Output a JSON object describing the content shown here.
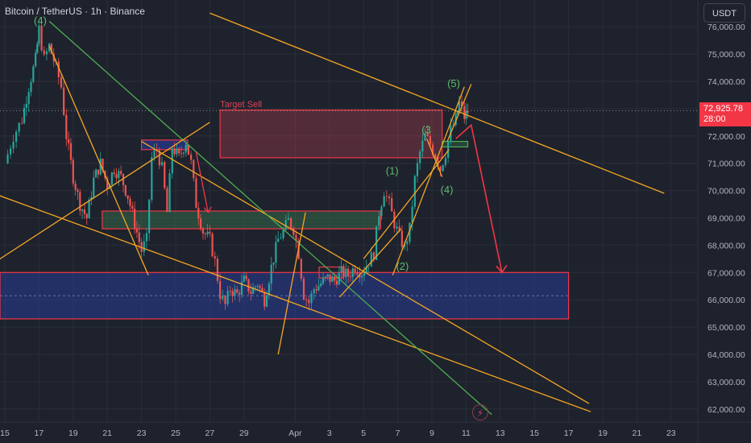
{
  "header": {
    "title": "Bitcoin / TetherUS · 1h · Binance"
  },
  "currency_button": {
    "label": "USDT"
  },
  "last_price": {
    "value": "72,925.78",
    "countdown": "28:00"
  },
  "colors": {
    "background": "#1e222d",
    "grid": "#2a2e39",
    "up": "#26a69a",
    "down": "#ef5350",
    "orange": "#f5a623",
    "green": "#4caf50",
    "red": "#f23645",
    "blue_zone": "#2a3f8f"
  },
  "chart_data": {
    "type": "candlestick",
    "ylim": [
      61800,
      76400
    ],
    "y_ticks": [
      {
        "value": 62000,
        "label": "62,000.00"
      },
      {
        "value": 63000,
        "label": "63,000.00"
      },
      {
        "value": 64000,
        "label": "64,000.00"
      },
      {
        "value": 65000,
        "label": "65,000.00"
      },
      {
        "value": 66000,
        "label": "66,000.00"
      },
      {
        "value": 67000,
        "label": "67,000.00"
      },
      {
        "value": 68000,
        "label": "68,000.00"
      },
      {
        "value": 69000,
        "label": "69,000.00"
      },
      {
        "value": 70000,
        "label": "70,000.00"
      },
      {
        "value": 71000,
        "label": "71,000.00"
      },
      {
        "value": 72000,
        "label": "72,000.00"
      },
      {
        "value": 73000,
        "label": "73,000.00"
      },
      {
        "value": 74000,
        "label": "74,000.00"
      },
      {
        "value": 75000,
        "label": "75,000.00"
      },
      {
        "value": 76000,
        "label": "76,000.00"
      }
    ],
    "x_ticks": [
      {
        "day": 15,
        "label": "15"
      },
      {
        "day": 17,
        "label": "17"
      },
      {
        "day": 19,
        "label": "19"
      },
      {
        "day": 21,
        "label": "21"
      },
      {
        "day": 23,
        "label": "23"
      },
      {
        "day": 25,
        "label": "25"
      },
      {
        "day": 27,
        "label": "27"
      },
      {
        "day": 29,
        "label": "29"
      },
      {
        "day": 32,
        "label": "Apr"
      },
      {
        "day": 34,
        "label": "3"
      },
      {
        "day": 36,
        "label": "5"
      },
      {
        "day": 38,
        "label": "7"
      },
      {
        "day": 40,
        "label": "9"
      },
      {
        "day": 42,
        "label": "11"
      },
      {
        "day": 44,
        "label": "13"
      },
      {
        "day": 46,
        "label": "15"
      },
      {
        "day": 48,
        "label": "17"
      },
      {
        "day": 50,
        "label": "19"
      },
      {
        "day": 52,
        "label": "21"
      },
      {
        "day": 54,
        "label": "23"
      }
    ],
    "price_path": [
      [
        15.0,
        71000
      ],
      [
        15.5,
        72000
      ],
      [
        16.0,
        72600
      ],
      [
        16.4,
        73800
      ],
      [
        16.8,
        74800
      ],
      [
        17.0,
        75900
      ],
      [
        17.3,
        74800
      ],
      [
        17.6,
        75300
      ],
      [
        18.0,
        74500
      ],
      [
        18.3,
        73800
      ],
      [
        18.6,
        72000
      ],
      [
        19.0,
        70500
      ],
      [
        19.4,
        69500
      ],
      [
        19.8,
        69000
      ],
      [
        20.2,
        70400
      ],
      [
        20.6,
        71000
      ],
      [
        21.0,
        70200
      ],
      [
        21.4,
        70800
      ],
      [
        21.8,
        70500
      ],
      [
        22.2,
        69800
      ],
      [
        22.6,
        68800
      ],
      [
        23.0,
        67800
      ],
      [
        23.3,
        68200
      ],
      [
        23.6,
        71200
      ],
      [
        23.9,
        71500
      ],
      [
        24.2,
        70800
      ],
      [
        24.5,
        69200
      ],
      [
        24.8,
        71600
      ],
      [
        25.2,
        71200
      ],
      [
        25.6,
        71800
      ],
      [
        25.9,
        71000
      ],
      [
        26.2,
        69500
      ],
      [
        26.6,
        68500
      ],
      [
        27.0,
        68200
      ],
      [
        27.3,
        67400
      ],
      [
        27.6,
        66200
      ],
      [
        27.9,
        65800
      ],
      [
        28.2,
        66400
      ],
      [
        28.6,
        66200
      ],
      [
        29.0,
        66700
      ],
      [
        29.4,
        66300
      ],
      [
        29.8,
        66600
      ],
      [
        30.2,
        66000
      ],
      [
        30.6,
        67200
      ],
      [
        31.0,
        68200
      ],
      [
        31.3,
        68500
      ],
      [
        31.6,
        68900
      ],
      [
        31.9,
        68600
      ],
      [
        32.2,
        67700
      ],
      [
        32.5,
        66200
      ],
      [
        32.8,
        65900
      ],
      [
        33.1,
        66400
      ],
      [
        33.5,
        66600
      ],
      [
        33.9,
        66800
      ],
      [
        34.3,
        66700
      ],
      [
        34.7,
        67000
      ],
      [
        35.1,
        66900
      ],
      [
        35.5,
        67200
      ],
      [
        35.9,
        67000
      ],
      [
        36.3,
        67400
      ],
      [
        36.6,
        67700
      ],
      [
        36.9,
        69200
      ],
      [
        37.2,
        70000
      ],
      [
        37.5,
        69500
      ],
      [
        37.8,
        68800
      ],
      [
        38.1,
        68300
      ],
      [
        38.4,
        67900
      ],
      [
        38.7,
        68600
      ],
      [
        39.0,
        70400
      ],
      [
        39.3,
        71400
      ],
      [
        39.6,
        72000
      ],
      [
        39.9,
        71700
      ],
      [
        40.2,
        71300
      ],
      [
        40.5,
        70800
      ],
      [
        40.8,
        71400
      ],
      [
        41.1,
        72200
      ],
      [
        41.4,
        72600
      ],
      [
        41.6,
        73200
      ],
      [
        41.9,
        72700
      ],
      [
        42.1,
        72900
      ]
    ],
    "zones": [
      {
        "name": "target-sell-zone",
        "x": [
          27.6,
          40.6
        ],
        "y": [
          71200,
          72950
        ]
      },
      {
        "name": "blue-support-zone",
        "x": [
          13.0,
          48.0
        ],
        "y": [
          65300,
          67000
        ]
      },
      {
        "name": "green-zone",
        "x": [
          20.7,
          37.0
        ],
        "y": [
          68600,
          69250
        ]
      },
      {
        "name": "blue-box-small",
        "x": [
          23.0,
          25.7
        ],
        "y": [
          71500,
          71850
        ]
      },
      {
        "name": "consolidation-box",
        "x": [
          33.4,
          34.8
        ],
        "y": [
          66800,
          67200
        ]
      },
      {
        "name": "wave4-box",
        "x": [
          40.6,
          42.1
        ],
        "y": [
          71600,
          71800
        ]
      }
    ],
    "lines": [
      {
        "name": "upper-resistance",
        "color": "orange",
        "points": [
          [
            27.0,
            76500
          ],
          [
            53.6,
            69900
          ]
        ]
      },
      {
        "name": "channel-lower",
        "color": "orange",
        "points": [
          [
            13.0,
            70200
          ],
          [
            49.3,
            61900
          ]
        ]
      },
      {
        "name": "channel-mid",
        "color": "orange",
        "points": [
          [
            23.0,
            71800
          ],
          [
            49.2,
            62200
          ]
        ]
      },
      {
        "name": "green-diagonal",
        "color": "green",
        "points": [
          [
            17.6,
            76200
          ],
          [
            43.5,
            61800
          ]
        ]
      },
      {
        "name": "rising-wedge-1",
        "color": "orange",
        "points": [
          [
            13.0,
            66800
          ],
          [
            27.0,
            72500
          ]
        ]
      },
      {
        "name": "falling-from-top",
        "color": "orange",
        "points": [
          [
            17.6,
            75300
          ],
          [
            23.4,
            66900
          ]
        ]
      },
      {
        "name": "wave2-support",
        "color": "orange",
        "points": [
          [
            36.0,
            67500
          ],
          [
            41.0,
            71500
          ]
        ]
      },
      {
        "name": "wave2-lower",
        "color": "orange",
        "points": [
          [
            37.7,
            66900
          ],
          [
            41.9,
            73800
          ]
        ]
      },
      {
        "name": "wave3-wedge",
        "color": "orange",
        "points": [
          [
            39.7,
            71900
          ],
          [
            40.6,
            70500
          ]
        ]
      },
      {
        "name": "wave5-upper",
        "color": "orange",
        "points": [
          [
            40.9,
            71800
          ],
          [
            42.3,
            73900
          ]
        ]
      },
      {
        "name": "mini-channel",
        "color": "orange",
        "points": [
          [
            31.0,
            64000
          ],
          [
            32.6,
            69200
          ]
        ]
      },
      {
        "name": "wave-rise",
        "color": "orange",
        "points": [
          [
            34.6,
            66100
          ],
          [
            38.2,
            68600
          ]
        ]
      }
    ],
    "projection": [
      [
        41.4,
        71900
      ],
      [
        42.3,
        72400
      ],
      [
        44.1,
        67000
      ]
    ],
    "annotations": [
      {
        "text": "(4)",
        "x": 16.7,
        "y": 76100,
        "color": "green"
      },
      {
        "text": "Target Sell",
        "x": 27.6,
        "y": 73050,
        "color": "red"
      },
      {
        "text": "(1)",
        "x": 37.3,
        "y": 70600,
        "color": "green"
      },
      {
        "text": "(2)",
        "x": 37.9,
        "y": 67100,
        "color": "green"
      },
      {
        "text": "(3",
        "x": 39.4,
        "y": 72100,
        "color": "green"
      },
      {
        "text": "(4)",
        "x": 40.5,
        "y": 69900,
        "color": "green"
      },
      {
        "text": "(5)",
        "x": 40.9,
        "y": 73800,
        "color": "green"
      }
    ],
    "last_price_value": 72925.78
  }
}
